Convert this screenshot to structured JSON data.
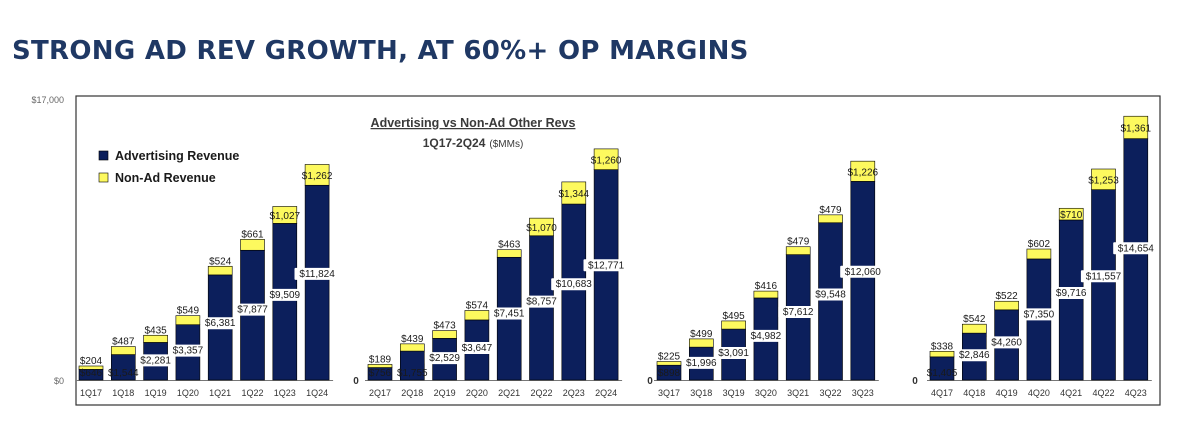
{
  "page": {
    "headline": "STRONG AD REV GROWTH, AT 60%+ OP MARGINS"
  },
  "chart_data": {
    "type": "bar",
    "stacked": true,
    "title": "Advertising vs Non-Ad Other Revs",
    "subtitle": "1Q17-2Q24",
    "subtitle_unit": "($MMs)",
    "ylim": [
      0,
      17000
    ],
    "y_ticks": [
      "$17,000",
      "$0"
    ],
    "legend_position": "top-left",
    "grid": false,
    "colors": {
      "ad": "#0c1f5c",
      "nonad": "#fdf95e",
      "border": "#000000"
    },
    "series_names": [
      "Advertising Revenue",
      "Non-Ad Revenue"
    ],
    "separator_label": "0",
    "groups": [
      {
        "categories": [
          "1Q17",
          "1Q18",
          "1Q19",
          "1Q20",
          "1Q21",
          "1Q22",
          "1Q23",
          "1Q24"
        ],
        "ad": [
          646,
          1544,
          2281,
          3357,
          6381,
          7877,
          9509,
          11824
        ],
        "nonad": [
          204,
          487,
          435,
          549,
          524,
          661,
          1027,
          1262
        ],
        "ad_labels": [
          "$646",
          "$1,544",
          "$2,281",
          "$3,357",
          "$6,381",
          "$7,877",
          "$9,509",
          "$11,824"
        ],
        "nonad_labels": [
          "$204",
          "$487",
          "$435",
          "$549",
          "$524",
          "$661",
          "$1,027",
          "$1,262"
        ]
      },
      {
        "categories": [
          "2Q17",
          "2Q18",
          "2Q19",
          "2Q20",
          "2Q21",
          "2Q22",
          "2Q23",
          "2Q24"
        ],
        "ad": [
          756,
          1755,
          2529,
          3647,
          7451,
          8757,
          10683,
          12771
        ],
        "nonad": [
          189,
          439,
          473,
          574,
          463,
          1070,
          1344,
          1260
        ],
        "ad_labels": [
          "$756",
          "$1,755",
          "$2,529",
          "$3,647",
          "$7,451",
          "$8,757",
          "$10,683",
          "$12,771"
        ],
        "nonad_labels": [
          "$189",
          "$439",
          "$473",
          "$574",
          "$463",
          "$1,070",
          "$1,344",
          "$1,260"
        ]
      },
      {
        "categories": [
          "3Q17",
          "3Q18",
          "3Q19",
          "3Q20",
          "3Q21",
          "3Q22",
          "3Q23"
        ],
        "ad": [
          898,
          1996,
          3091,
          4982,
          7612,
          9548,
          12060
        ],
        "nonad": [
          225,
          499,
          495,
          416,
          479,
          479,
          1226
        ],
        "ad_labels": [
          "$898",
          "$1,996",
          "$3,091",
          "$4,982",
          "$7,612",
          "$9,548",
          "$12,060"
        ],
        "nonad_labels": [
          "$225",
          "$499",
          "$495",
          "$416",
          "$479",
          "$479",
          "$1,226"
        ]
      },
      {
        "categories": [
          "4Q17",
          "4Q18",
          "4Q19",
          "4Q20",
          "4Q21",
          "4Q22",
          "4Q23"
        ],
        "ad": [
          1405,
          2846,
          4260,
          7350,
          9716,
          11557,
          14654
        ],
        "nonad": [
          338,
          542,
          522,
          602,
          710,
          1253,
          1361
        ],
        "ad_labels": [
          "$1,405",
          "$2,846",
          "$4,260",
          "$7,350",
          "$9,716",
          "$11,557",
          "$14,654"
        ],
        "nonad_labels": [
          "$338",
          "$542",
          "$522",
          "$602",
          "$710",
          "$1,253",
          "$1,361"
        ]
      }
    ]
  }
}
